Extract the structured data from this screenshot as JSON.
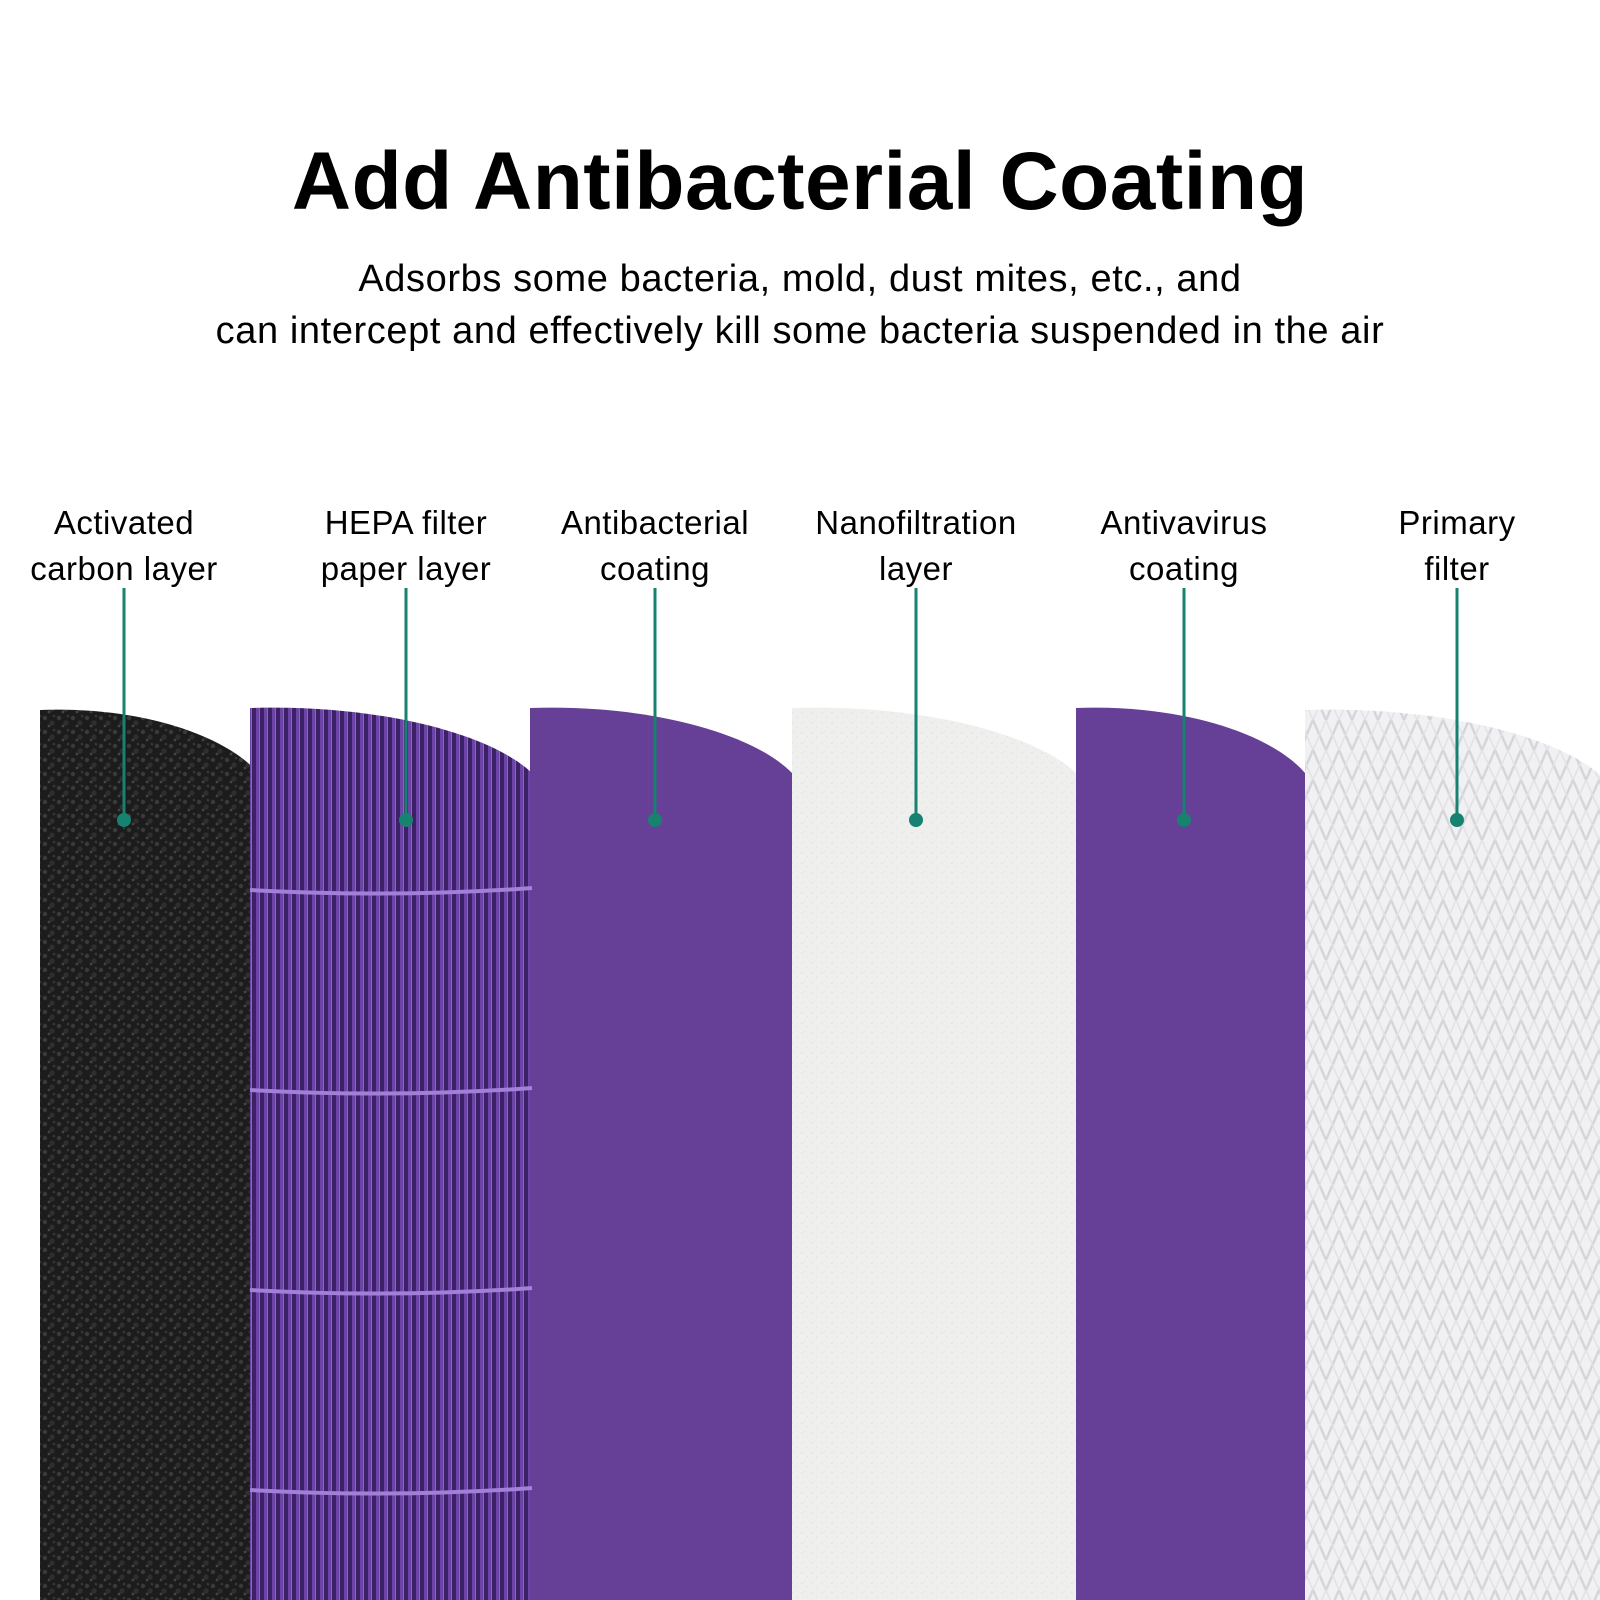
{
  "title": "Add Antibacterial Coating",
  "subtitle_lines": [
    "Adsorbs some bacteria, mold, dust mites, etc., and",
    "can intercept and effectively kill some bacteria suspended in the air"
  ],
  "layers": [
    {
      "line1": "Activated",
      "line2": "carbon layer",
      "texture": "black-carbon",
      "color": "#1e1e1e"
    },
    {
      "line1": "HEPA filter",
      "line2": "paper layer",
      "texture": "purple-mesh",
      "color": "#5b2f86"
    },
    {
      "line1": "Antibacterial",
      "line2": "coating",
      "texture": "solid-purple",
      "color": "#663f96"
    },
    {
      "line1": "Nanofiltration",
      "line2": "layer",
      "texture": "white-felt",
      "color": "#efefed"
    },
    {
      "line1": "Antivavirus",
      "line2": "coating",
      "texture": "solid-purple",
      "color": "#663f96"
    },
    {
      "line1": "Primary",
      "line2": "filter",
      "texture": "white-net",
      "color": "#f0f0f2"
    }
  ],
  "pointer_color": "#16826f"
}
